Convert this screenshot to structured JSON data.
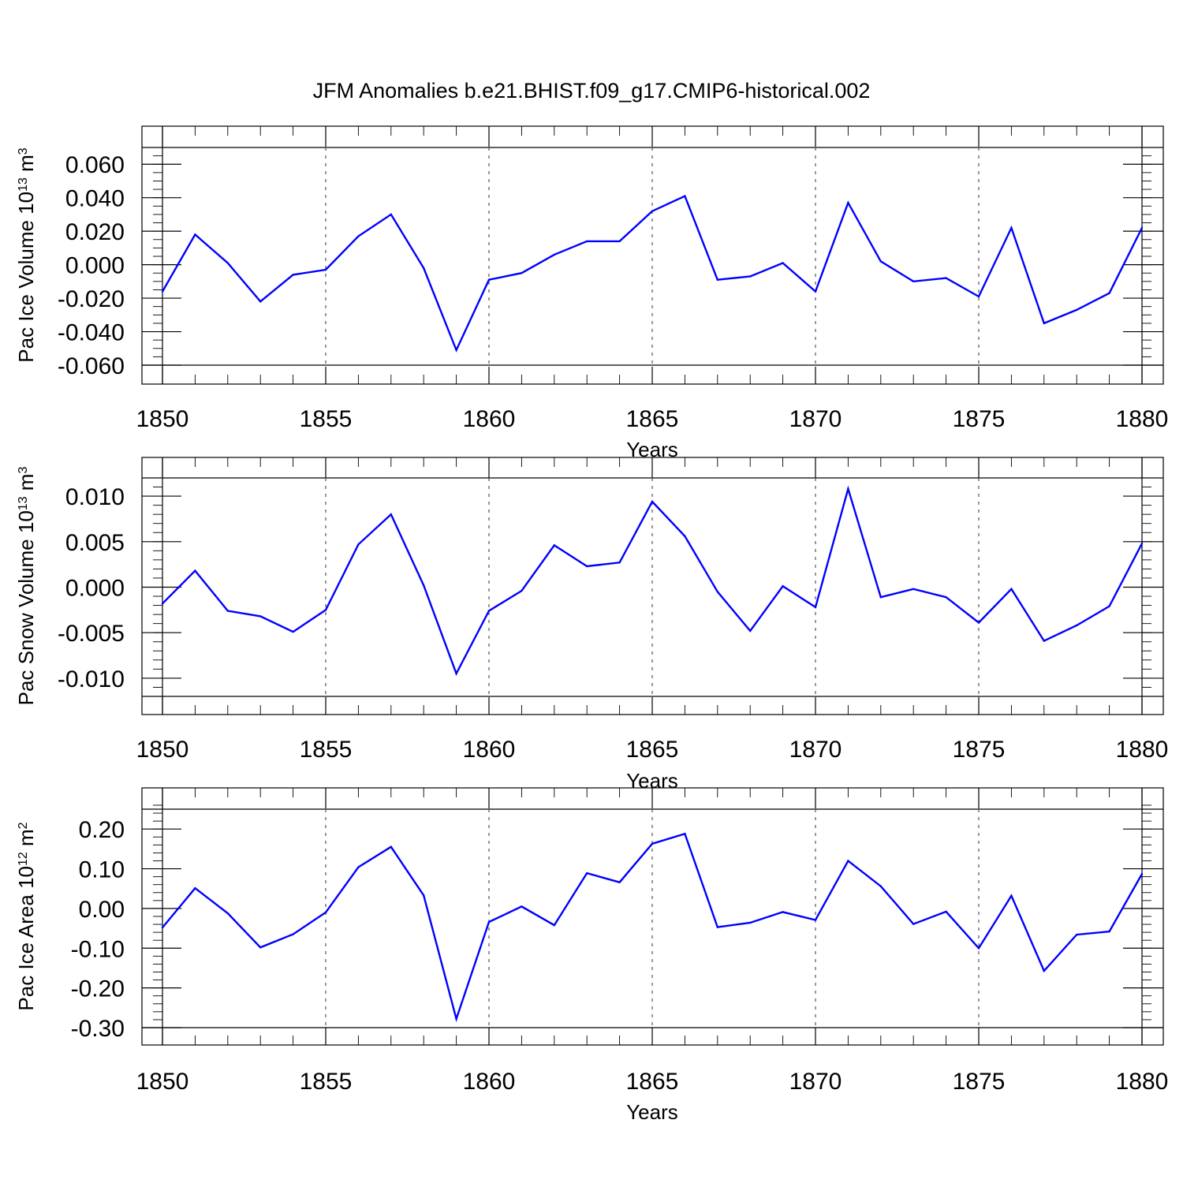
{
  "title": "JFM Anomalies b.e21.BHIST.f09_g17.CMIP6-historical.002",
  "colors": {
    "line": "#0000ff",
    "axis": "#000000",
    "grid": "#555555"
  },
  "years": [
    1850,
    1851,
    1852,
    1853,
    1854,
    1855,
    1856,
    1857,
    1858,
    1859,
    1860,
    1861,
    1862,
    1863,
    1864,
    1865,
    1866,
    1867,
    1868,
    1869,
    1870,
    1871,
    1872,
    1873,
    1874,
    1875,
    1876,
    1877,
    1878,
    1879,
    1880
  ],
  "chart_data": [
    {
      "type": "line",
      "name": "pac-ice-volume",
      "title": "JFM Anomalies b.e21.BHIST.f09_g17.CMIP6-historical.002",
      "xlabel": "Years",
      "ylabel": "Pac Ice Volume 10",
      "ylabel_exp": "13",
      "ylabel_unit": "m",
      "ylabel_unit_exp": "3",
      "xlim": [
        1850,
        1880
      ],
      "ylim": [
        -0.06,
        0.07
      ],
      "x_ticks": [
        1850,
        1855,
        1860,
        1865,
        1870,
        1875,
        1880
      ],
      "y_ticks": [
        -0.06,
        -0.04,
        -0.02,
        0.0,
        0.02,
        0.04,
        0.06
      ],
      "y_tick_labels": [
        "-0.060",
        "-0.040",
        "-0.020",
        "0.000",
        "0.020",
        "0.040",
        "0.060"
      ],
      "y_minor_step": 0.005,
      "grid": "vertical dashed at major x ticks",
      "values": [
        -0.016,
        0.018,
        0.001,
        -0.022,
        -0.006,
        -0.003,
        0.017,
        0.03,
        -0.002,
        -0.051,
        -0.009,
        -0.005,
        0.006,
        0.014,
        0.014,
        0.032,
        0.041,
        -0.009,
        -0.007,
        0.001,
        -0.016,
        0.037,
        0.002,
        -0.01,
        -0.008,
        -0.019,
        0.022,
        -0.035,
        -0.027,
        -0.017,
        0.022
      ]
    },
    {
      "type": "line",
      "name": "pac-snow-volume",
      "xlabel": "Years",
      "ylabel": "Pac Snow Volume 10",
      "ylabel_exp": "13",
      "ylabel_unit": "m",
      "ylabel_unit_exp": "3",
      "xlim": [
        1850,
        1880
      ],
      "ylim": [
        -0.012,
        0.012
      ],
      "x_ticks": [
        1850,
        1855,
        1860,
        1865,
        1870,
        1875,
        1880
      ],
      "y_ticks": [
        -0.01,
        -0.005,
        0.0,
        0.005,
        0.01
      ],
      "y_tick_labels": [
        "-0.010",
        "-0.005",
        "0.000",
        "0.005",
        "0.010"
      ],
      "y_minor_step": 0.001,
      "grid": "vertical dashed at major x ticks",
      "values": [
        -0.0018,
        0.0018,
        -0.0026,
        -0.0032,
        -0.0049,
        -0.0025,
        0.0047,
        0.008,
        0.0002,
        -0.0095,
        -0.0026,
        -0.0004,
        0.0046,
        0.0023,
        0.0027,
        0.0094,
        0.0056,
        -0.0005,
        -0.0048,
        0.0001,
        -0.0022,
        0.0108,
        -0.0011,
        -0.0002,
        -0.0011,
        -0.0039,
        -0.0002,
        -0.0059,
        -0.0042,
        -0.0021,
        0.0048
      ]
    },
    {
      "type": "line",
      "name": "pac-ice-area",
      "xlabel": "Years",
      "ylabel": "Pac Ice Area 10",
      "ylabel_exp": "12",
      "ylabel_unit": "m",
      "ylabel_unit_exp": "2",
      "xlim": [
        1850,
        1880
      ],
      "ylim": [
        -0.3,
        0.25
      ],
      "x_ticks": [
        1850,
        1855,
        1860,
        1865,
        1870,
        1875,
        1880
      ],
      "y_ticks": [
        -0.3,
        -0.2,
        -0.1,
        0.0,
        0.1,
        0.2
      ],
      "y_tick_labels": [
        "-0.30",
        "-0.20",
        "-0.10",
        "0.00",
        "0.10",
        "0.20"
      ],
      "y_minor_step": 0.02,
      "grid": "vertical dashed at major x ticks",
      "values": [
        -0.048,
        0.051,
        -0.012,
        -0.098,
        -0.065,
        -0.01,
        0.104,
        0.155,
        0.033,
        -0.278,
        -0.034,
        0.005,
        -0.042,
        0.089,
        0.066,
        0.163,
        0.188,
        -0.047,
        -0.036,
        -0.009,
        -0.029,
        0.12,
        0.056,
        -0.039,
        -0.008,
        -0.1,
        0.032,
        -0.157,
        -0.066,
        -0.058,
        0.087
      ]
    }
  ]
}
